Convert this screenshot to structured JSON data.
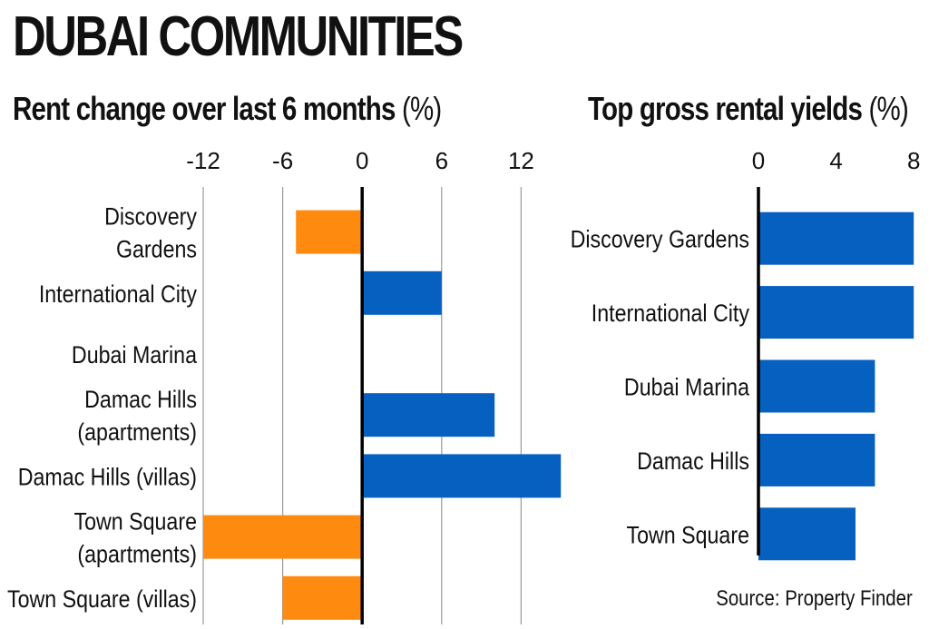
{
  "title": "DUBAI COMMUNITIES",
  "source": "Source: Property Finder",
  "chart_data": [
    {
      "type": "bar",
      "orientation": "horizontal",
      "title": "Rent change over last 6 months",
      "unit": "(%)",
      "categories": [
        [
          "Discovery",
          "Gardens"
        ],
        [
          "International City"
        ],
        [
          "Dubai Marina"
        ],
        [
          "Damac Hills",
          "(apartments)"
        ],
        [
          "Damac Hills (villas)"
        ],
        [
          "Town Square",
          "(apartments)"
        ],
        [
          "Town Square (villas)"
        ]
      ],
      "values": [
        -5,
        6,
        0,
        10,
        15,
        -12,
        -6
      ],
      "xlim": [
        -12,
        15
      ],
      "ticks": [
        -12,
        -6,
        0,
        6,
        12
      ],
      "tick_labels": [
        "-12",
        "-6",
        "0",
        "6",
        "12"
      ],
      "grid": true,
      "colors": {
        "positive": "#0560c0",
        "negative": "#ff8a10"
      }
    },
    {
      "type": "bar",
      "orientation": "horizontal",
      "title": "Top gross rental yields",
      "unit": "(%)",
      "categories": [
        [
          "Discovery Gardens"
        ],
        [
          "International City"
        ],
        [
          "Dubai Marina"
        ],
        [
          "Damac Hills"
        ],
        [
          "Town Square"
        ]
      ],
      "values": [
        8,
        8,
        6,
        6,
        5
      ],
      "xlim": [
        0,
        8
      ],
      "ticks": [
        0,
        4,
        8
      ],
      "tick_labels": [
        "0",
        "4",
        "8"
      ],
      "grid": false,
      "colors": {
        "bar": "#0560c0"
      }
    }
  ]
}
